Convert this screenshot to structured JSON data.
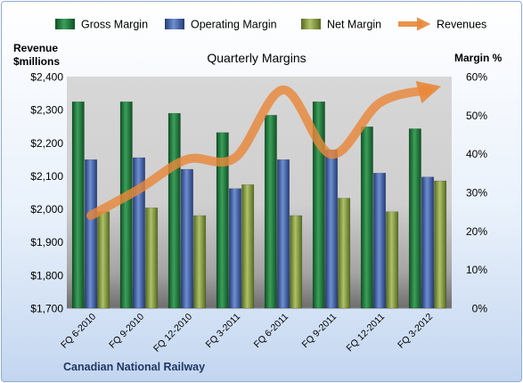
{
  "chart_data": {
    "type": "bar",
    "title": "Quarterly Margins",
    "left_axis_title_line1": "Revenue",
    "left_axis_title_line2": "$millions",
    "right_axis_title": "Margin %",
    "footer": "Canadian National Railway",
    "categories": [
      "FQ 6-2010",
      "FQ 9-2010",
      "FQ 12-2010",
      "FQ 3-2011",
      "FQ 6-2011",
      "FQ 9-2011",
      "FQ 12-2011",
      "FQ 3-2012"
    ],
    "left_axis": {
      "min": 1700,
      "max": 2400,
      "ticks": [
        1700,
        1800,
        1900,
        2000,
        2100,
        2200,
        2300,
        2400
      ],
      "tick_labels": [
        "$1,700",
        "$1,800",
        "$1,900",
        "$2,000",
        "$2,100",
        "$2,200",
        "$2,300",
        "$2,400"
      ]
    },
    "right_axis": {
      "min": 0,
      "max": 60,
      "ticks": [
        0,
        10,
        20,
        30,
        40,
        50,
        60
      ],
      "tick_labels": [
        "0%",
        "10%",
        "20%",
        "30%",
        "40%",
        "50%",
        "60%"
      ]
    },
    "series": [
      {
        "name": "Gross Margin",
        "axis": "right",
        "kind": "bar",
        "color": "#1e7a3c",
        "values": [
          53.5,
          53.5,
          50.5,
          45.5,
          50.0,
          53.5,
          47.0,
          46.5
        ]
      },
      {
        "name": "Operating Margin",
        "axis": "right",
        "kind": "bar",
        "color": "#3f5fa6",
        "values": [
          38.5,
          39.0,
          36.0,
          31.0,
          38.5,
          41.0,
          35.0,
          34.0
        ]
      },
      {
        "name": "Net Margin",
        "axis": "right",
        "kind": "bar",
        "color": "#7f9a3b",
        "values": [
          25.0,
          26.0,
          24.0,
          32.0,
          24.0,
          28.5,
          25.0,
          33.0
        ]
      },
      {
        "name": "Revenues",
        "axis": "left",
        "kind": "line",
        "color": "#e8873a",
        "values": [
          1980,
          2060,
          2150,
          2155,
          2360,
          2165,
          2320,
          2360
        ]
      }
    ],
    "legend_position": "top",
    "grid": false
  }
}
